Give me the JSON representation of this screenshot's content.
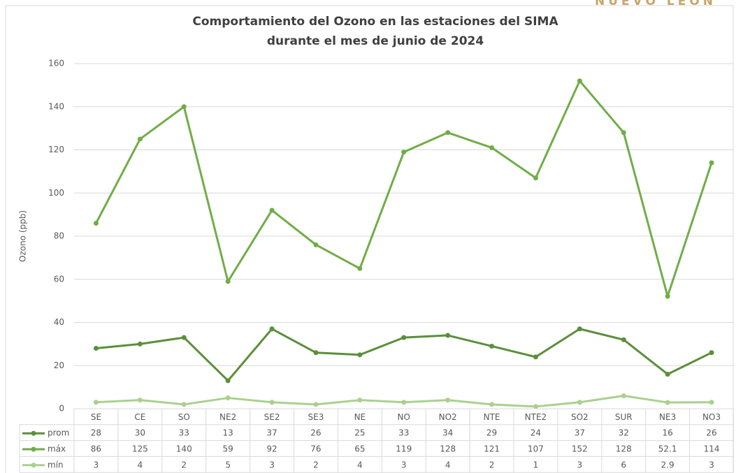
{
  "brand": "NUEVO LEÓN",
  "chart_data": {
    "type": "line",
    "title": [
      "Comportamiento del Ozono en las estaciones del SIMA",
      "durante el mes de junio de 2024"
    ],
    "y_label": "Ozono (ppb)",
    "categories": [
      "SE",
      "CE",
      "SO",
      "NE2",
      "SE2",
      "SE3",
      "NE",
      "NO",
      "NO2",
      "NTE",
      "NTE2",
      "SO2",
      "SUR",
      "NE3",
      "NO3"
    ],
    "series": [
      {
        "name": "prom",
        "color": "#5b8f3a",
        "values": [
          28,
          30,
          33,
          13,
          37,
          26,
          25,
          33,
          34,
          29,
          24,
          37,
          32,
          16,
          26
        ]
      },
      {
        "name": "máx",
        "color": "#70ad47",
        "values": [
          86,
          125,
          140,
          59,
          92,
          76,
          65,
          119,
          128,
          121,
          107,
          152,
          128,
          52.1,
          114
        ]
      },
      {
        "name": "mín",
        "color": "#a9d18e",
        "values": [
          3,
          4,
          2,
          5,
          3,
          2,
          4,
          3,
          4,
          2,
          1,
          3,
          6,
          2.9,
          3
        ]
      }
    ],
    "ylim": [
      0,
      160
    ],
    "yticks": [
      0,
      20,
      40,
      60,
      80,
      100,
      120,
      140,
      160
    ],
    "grid": true,
    "data_table": true
  }
}
